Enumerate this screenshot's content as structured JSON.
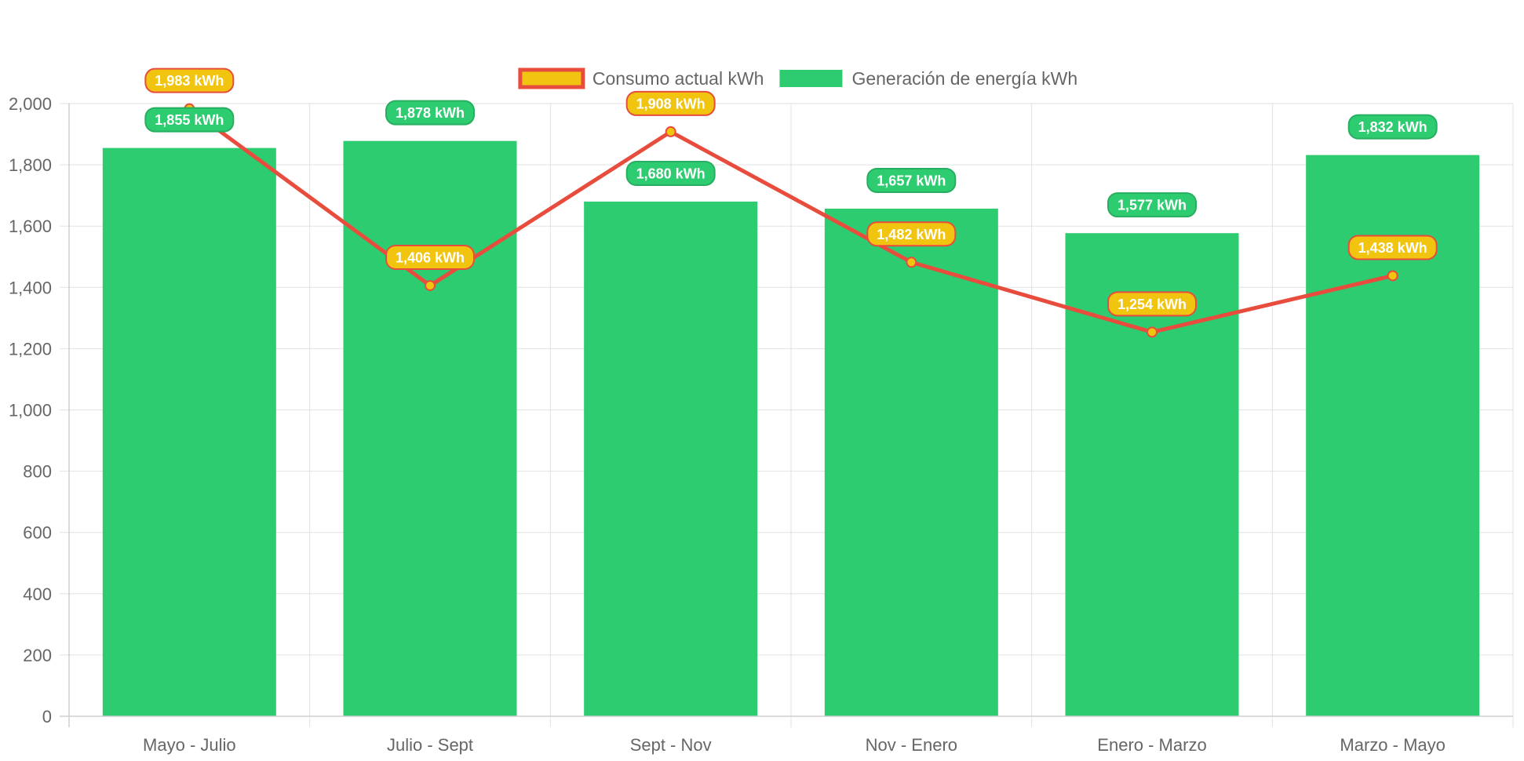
{
  "chart_data": {
    "type": "bar",
    "categories": [
      "Mayo - Julio",
      "Julio - Sept",
      "Sept - Nov",
      "Nov - Enero",
      "Enero - Marzo",
      "Marzo - Mayo"
    ],
    "series": [
      {
        "name": "Consumo actual kWh",
        "type": "line",
        "values": [
          1983,
          1406,
          1908,
          1482,
          1254,
          1438
        ],
        "labels": [
          "1,983 kWh",
          "1,406 kWh",
          "1,908 kWh",
          "1,482 kWh",
          "1,254 kWh",
          "1,438 kWh"
        ],
        "color": "#e74c3c",
        "fill_color": "#f1c40f"
      },
      {
        "name": "Generación de energía kWh",
        "type": "bar",
        "values": [
          1855,
          1878,
          1680,
          1657,
          1577,
          1832
        ],
        "labels": [
          "1,855 kWh",
          "1,878 kWh",
          "1,680 kWh",
          "1,657 kWh",
          "1,577 kWh",
          "1,832 kWh"
        ],
        "color": "#2ecc71",
        "label_border_color": "#27ae60"
      }
    ],
    "ylim": [
      0,
      2000
    ],
    "yticks": [
      0,
      200,
      400,
      600,
      800,
      1000,
      1200,
      1400,
      1600,
      1800,
      2000
    ],
    "ytick_labels": [
      "0",
      "200",
      "400",
      "600",
      "800",
      "1,000",
      "1,200",
      "1,400",
      "1,600",
      "1,800",
      "2,000"
    ],
    "grid": true,
    "legend_position": "top"
  }
}
